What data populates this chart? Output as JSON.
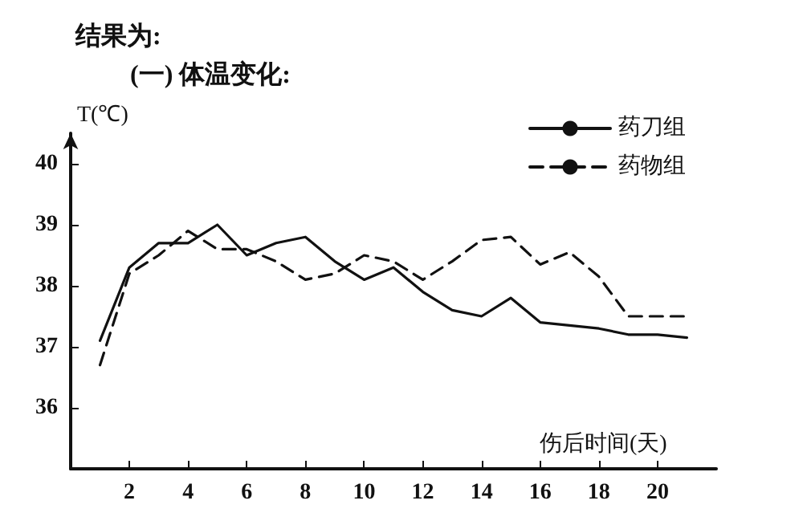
{
  "chart_data": {
    "type": "line",
    "title": "结果为:",
    "subtitle": "(一) 体温变化:",
    "xlabel": "伤后时间(天)",
    "ylabel": "T(℃)",
    "x": [
      1,
      2,
      3,
      4,
      5,
      6,
      7,
      8,
      9,
      10,
      11,
      12,
      13,
      14,
      15,
      16,
      17,
      18,
      19,
      20,
      21
    ],
    "series": [
      {
        "name": "药刀组",
        "color": "#111111",
        "line_style": "solid",
        "values": [
          37.1,
          38.3,
          38.7,
          38.7,
          39.0,
          38.5,
          38.7,
          38.8,
          38.4,
          38.1,
          38.3,
          37.9,
          37.6,
          37.5,
          37.8,
          37.4,
          37.35,
          37.3,
          37.2,
          37.2,
          37.15
        ]
      },
      {
        "name": "药物组",
        "color": "#111111",
        "line_style": "dashed",
        "values": [
          36.7,
          38.2,
          38.5,
          38.9,
          38.6,
          38.6,
          38.4,
          38.1,
          38.2,
          38.5,
          38.4,
          38.1,
          38.4,
          38.75,
          38.8,
          38.35,
          38.55,
          38.15,
          37.5,
          37.5,
          37.5
        ]
      }
    ],
    "xlim": [
      0,
      22
    ],
    "xticks": [
      2,
      4,
      6,
      8,
      10,
      12,
      14,
      16,
      18,
      20
    ],
    "ylim": [
      35,
      40.5
    ],
    "yticks": [
      36,
      37,
      38,
      39,
      40
    ],
    "grid": false,
    "legend": "top right",
    "marker": "none"
  }
}
